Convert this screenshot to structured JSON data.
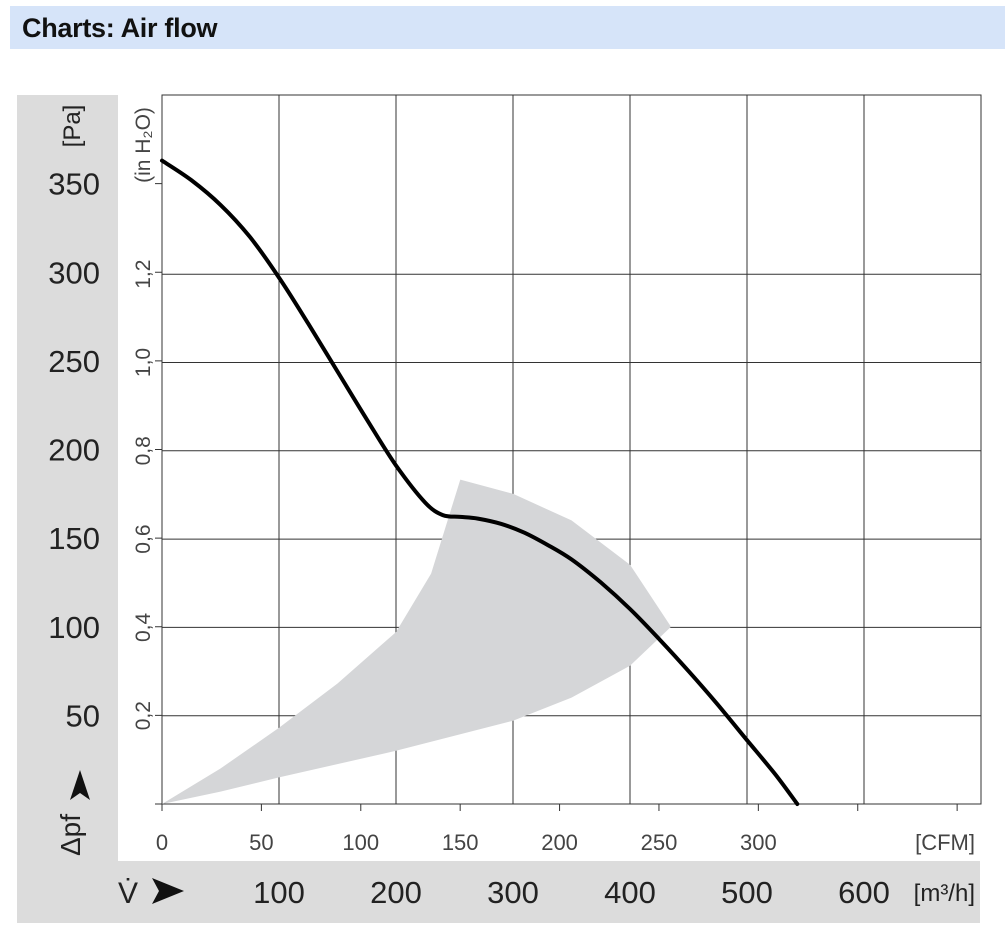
{
  "header": {
    "title": "Charts: Air flow"
  },
  "chart_data": {
    "type": "line",
    "title": "",
    "y_axis_pa": {
      "label": "[Pa]",
      "ticks": [
        350,
        300,
        250,
        200,
        150,
        100,
        50
      ],
      "range": [
        0,
        400
      ]
    },
    "y_axis_inh2o": {
      "label": "(in H₂O)",
      "ticks": [
        "1,2",
        "1,0",
        "0,8",
        "0,6",
        "0,4",
        "0,2"
      ],
      "values": [
        1.2,
        1.0,
        0.8,
        0.6,
        0.4,
        0.2
      ]
    },
    "y_symbol": "Δpf",
    "x_axis_cfm": {
      "label": "[CFM]",
      "ticks": [
        0,
        50,
        100,
        150,
        200,
        250,
        300
      ]
    },
    "x_axis_m3h": {
      "symbol": "V̇",
      "label": "[m³/h]",
      "ticks": [
        100,
        200,
        300,
        400,
        500,
        600
      ],
      "range": [
        0,
        700
      ]
    },
    "grid": true,
    "series": [
      {
        "values_x_m3h": [
          0,
          25,
          50,
          75,
          100,
          125,
          150,
          175,
          200,
          225,
          240,
          255,
          270,
          290,
          310,
          330,
          350,
          375,
          400,
          425,
          450,
          475,
          500,
          525,
          543
        ],
        "values_y_pa": [
          363,
          352,
          338,
          320,
          297,
          271,
          244,
          217,
          191,
          170,
          163,
          162,
          161,
          158,
          153,
          146,
          138,
          125,
          110,
          93,
          75,
          56,
          36,
          16,
          0
        ]
      }
    ],
    "efficiency_region": {
      "upper_edge": [
        [
          0,
          0
        ],
        [
          50,
          20
        ],
        [
          100,
          43
        ],
        [
          150,
          68
        ],
        [
          200,
          97
        ],
        [
          230,
          130
        ],
        [
          255,
          183
        ]
      ],
      "outer_edge": [
        [
          255,
          183
        ],
        [
          300,
          175
        ],
        [
          350,
          160
        ],
        [
          400,
          135
        ],
        [
          435,
          100
        ]
      ],
      "lower_edge": [
        [
          435,
          100
        ],
        [
          400,
          78
        ],
        [
          350,
          60
        ],
        [
          300,
          47
        ],
        [
          200,
          30
        ],
        [
          100,
          15
        ],
        [
          50,
          7
        ],
        [
          0,
          0
        ]
      ]
    }
  }
}
